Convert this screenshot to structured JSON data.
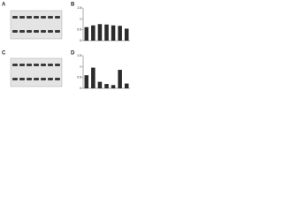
{
  "panels": [
    "A",
    "B",
    "C",
    "D"
  ],
  "chart_data": [
    {
      "type": "bar",
      "values": [
        0.62,
        0.7,
        0.76,
        0.74,
        0.7,
        0.68,
        0.55
      ],
      "color": "#2b2b2b",
      "ylim": [
        0,
        1.5
      ],
      "yticks": [
        0,
        0.5,
        1,
        1.5
      ]
    },
    {
      "type": "bar",
      "values": [
        0.6,
        0.95,
        0.3,
        0.2,
        0.15,
        0.85,
        0.22
      ],
      "color": "#2b2b2b",
      "ylim": [
        0,
        1.5
      ],
      "yticks": [
        0,
        0.5,
        1,
        1.5
      ]
    }
  ]
}
